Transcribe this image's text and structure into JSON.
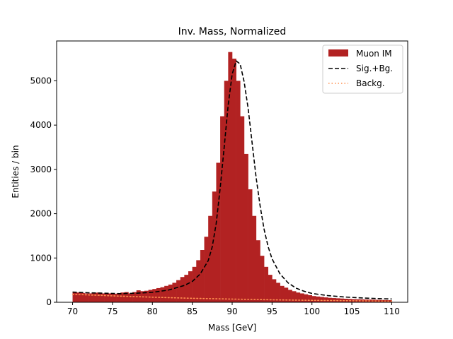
{
  "chart_data": {
    "type": "histogram",
    "title": "Inv. Mass, Normalized",
    "xlabel": "Mass [GeV]",
    "ylabel": "Entities / bin",
    "xlim": [
      68,
      112
    ],
    "ylim": [
      0,
      5900
    ],
    "xticks": [
      70,
      75,
      80,
      85,
      90,
      95,
      100,
      105,
      110
    ],
    "yticks": [
      0,
      1000,
      2000,
      3000,
      4000,
      5000
    ],
    "legend_position": "top-right",
    "grid": false,
    "histogram": {
      "name": "Muon IM",
      "color": "#b22222",
      "bin_edges": [
        70.0,
        70.5,
        71.0,
        71.5,
        72.0,
        72.5,
        73.0,
        73.5,
        74.0,
        74.5,
        75.0,
        75.5,
        76.0,
        76.5,
        77.0,
        77.5,
        78.0,
        78.5,
        79.0,
        79.5,
        80.0,
        80.5,
        81.0,
        81.5,
        82.0,
        82.5,
        83.0,
        83.5,
        84.0,
        84.5,
        85.0,
        85.5,
        86.0,
        86.5,
        87.0,
        87.5,
        88.0,
        88.5,
        89.0,
        89.5,
        90.0,
        90.5,
        91.0,
        91.5,
        92.0,
        92.5,
        93.0,
        93.5,
        94.0,
        94.5,
        95.0,
        95.5,
        96.0,
        96.5,
        97.0,
        97.5,
        98.0,
        98.5,
        99.0,
        99.5,
        100.0,
        100.5,
        101.0,
        101.5,
        102.0,
        102.5,
        103.0,
        103.5,
        104.0,
        104.5,
        105.0,
        105.5,
        106.0,
        106.5,
        107.0,
        107.5,
        108.0,
        108.5,
        109.0,
        109.5,
        110.0
      ],
      "values": [
        230,
        220,
        210,
        200,
        200,
        210,
        220,
        200,
        210,
        200,
        190,
        200,
        220,
        230,
        200,
        230,
        270,
        250,
        260,
        280,
        300,
        320,
        340,
        370,
        400,
        440,
        500,
        570,
        620,
        700,
        800,
        950,
        1180,
        1480,
        1950,
        2500,
        3150,
        4200,
        5000,
        5650,
        5500,
        5000,
        4200,
        3350,
        2550,
        1950,
        1400,
        1050,
        800,
        620,
        520,
        440,
        370,
        330,
        280,
        250,
        220,
        200,
        180,
        160,
        140,
        130,
        120,
        110,
        100,
        95,
        90,
        85,
        80,
        75,
        70,
        68,
        65,
        62,
        60,
        58,
        55,
        52,
        50,
        48
      ]
    },
    "series": [
      {
        "name": "Sig.+Bg.",
        "style": "dashed",
        "color": "#000000",
        "x": [
          70,
          72,
          74,
          76,
          78,
          80,
          82,
          84,
          85,
          86,
          87,
          87.5,
          88,
          88.5,
          89,
          89.5,
          90,
          90.5,
          91,
          91.5,
          92,
          92.5,
          93,
          93.5,
          94,
          94.5,
          95,
          96,
          97,
          98,
          99,
          100,
          102,
          104,
          106,
          108,
          110
        ],
        "y": [
          230,
          215,
          205,
          195,
          205,
          225,
          275,
          380,
          470,
          640,
          940,
          1250,
          1780,
          2580,
          3500,
          4450,
          5150,
          5450,
          5380,
          4980,
          4380,
          3600,
          2820,
          2180,
          1650,
          1260,
          980,
          640,
          440,
          320,
          250,
          200,
          150,
          120,
          100,
          85,
          75
        ]
      },
      {
        "name": "Backg.",
        "style": "dotted",
        "color": "#ff9050",
        "x": [
          70,
          75,
          80,
          85,
          90,
          95,
          100,
          105,
          110
        ],
        "y": [
          180,
          145,
          115,
          90,
          72,
          56,
          44,
          34,
          26
        ]
      }
    ]
  }
}
